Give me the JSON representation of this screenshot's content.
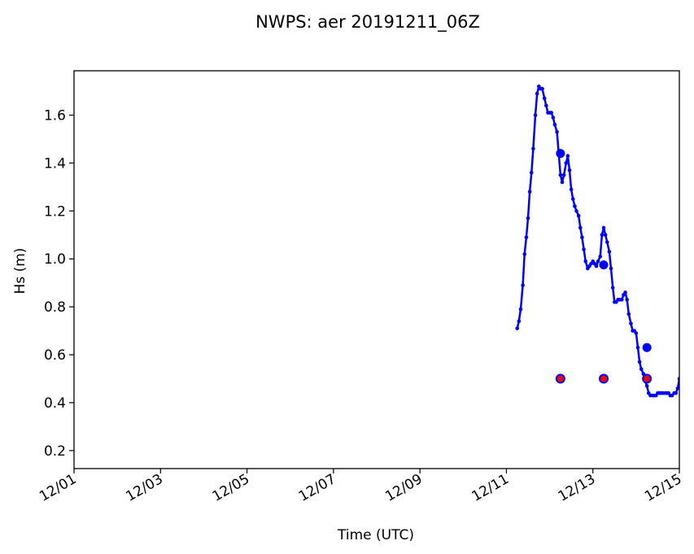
{
  "chart_data": {
    "type": "line",
    "title": "NWPS: aer 20191211_06Z",
    "xlabel": "Time (UTC)",
    "ylabel": "Hs (m)",
    "x_axis": "days since 12/01 00Z",
    "xlim": [
      0,
      14
    ],
    "ylim": [
      0.125,
      1.785
    ],
    "xticks": [
      {
        "value": 0,
        "label": "12/01"
      },
      {
        "value": 2,
        "label": "12/03"
      },
      {
        "value": 4,
        "label": "12/05"
      },
      {
        "value": 6,
        "label": "12/07"
      },
      {
        "value": 8,
        "label": "12/09"
      },
      {
        "value": 10,
        "label": "12/11"
      },
      {
        "value": 12,
        "label": "12/13"
      },
      {
        "value": 14,
        "label": "12/15"
      }
    ],
    "yticks": [
      {
        "value": 0.2,
        "label": "0.2"
      },
      {
        "value": 0.4,
        "label": "0.4"
      },
      {
        "value": 0.6,
        "label": "0.6"
      },
      {
        "value": 0.8,
        "label": "0.8"
      },
      {
        "value": 1.0,
        "label": "1.0"
      },
      {
        "value": 1.2,
        "label": "1.2"
      },
      {
        "value": 1.4,
        "label": "1.4"
      },
      {
        "value": 1.6,
        "label": "1.6"
      }
    ],
    "grid": false,
    "colors": {
      "line": "#0000ff",
      "marker_fill": "#ff0000",
      "marker_edge": "#0000ff"
    },
    "series": [
      {
        "name": "",
        "style": "line-with-small-dots",
        "x": [
          10.25,
          10.29,
          10.33,
          10.38,
          10.42,
          10.46,
          10.5,
          10.54,
          10.58,
          10.62,
          10.67,
          10.71,
          10.75,
          10.79,
          10.83,
          10.88,
          10.92,
          10.96,
          11.0,
          11.04,
          11.08,
          11.12,
          11.17,
          11.21,
          11.25,
          11.29,
          11.33,
          11.38,
          11.42,
          11.46,
          11.5,
          11.54,
          11.58,
          11.62,
          11.67,
          11.71,
          11.75,
          11.79,
          11.83,
          11.88,
          11.92,
          11.96,
          12.0,
          12.04,
          12.08,
          12.12,
          12.17,
          12.21,
          12.25,
          12.29,
          12.33,
          12.38,
          12.42,
          12.46,
          12.5,
          12.54,
          12.58,
          12.62,
          12.67,
          12.71,
          12.75,
          12.79,
          12.83,
          12.88,
          12.92,
          12.96,
          13.0,
          13.04,
          13.08,
          13.12,
          13.17,
          13.21,
          13.25,
          13.29,
          13.33,
          13.38,
          13.42,
          13.46,
          13.5,
          13.54,
          13.58,
          13.62,
          13.67,
          13.71,
          13.75,
          13.79,
          13.83,
          13.88,
          13.92,
          13.96,
          14.0
        ],
        "y": [
          0.71,
          0.74,
          0.79,
          0.89,
          1.02,
          1.09,
          1.17,
          1.28,
          1.36,
          1.46,
          1.6,
          1.69,
          1.72,
          1.71,
          1.71,
          1.67,
          1.64,
          1.61,
          1.61,
          1.61,
          1.59,
          1.56,
          1.53,
          1.44,
          1.35,
          1.32,
          1.35,
          1.4,
          1.43,
          1.37,
          1.29,
          1.25,
          1.22,
          1.2,
          1.18,
          1.13,
          1.09,
          1.04,
          0.99,
          0.96,
          0.97,
          0.98,
          0.99,
          0.98,
          0.97,
          0.99,
          1.01,
          1.1,
          1.13,
          1.1,
          1.07,
          1.03,
          0.96,
          0.88,
          0.82,
          0.82,
          0.83,
          0.83,
          0.83,
          0.85,
          0.86,
          0.83,
          0.77,
          0.73,
          0.7,
          0.7,
          0.69,
          0.63,
          0.57,
          0.54,
          0.52,
          0.49,
          0.47,
          0.44,
          0.43,
          0.43,
          0.43,
          0.43,
          0.44,
          0.44,
          0.44,
          0.44,
          0.44,
          0.44,
          0.44,
          0.43,
          0.43,
          0.44,
          0.44,
          0.46,
          0.5
        ]
      },
      {
        "name": "",
        "style": "large-blue-markers",
        "x": [
          11.25,
          12.25,
          13.25
        ],
        "y": [
          1.44,
          0.975,
          0.63
        ]
      },
      {
        "name": "",
        "style": "red-markers-blue-edge",
        "x": [
          11.25,
          12.25,
          13.25
        ],
        "y": [
          0.5,
          0.5,
          0.5
        ]
      }
    ]
  }
}
